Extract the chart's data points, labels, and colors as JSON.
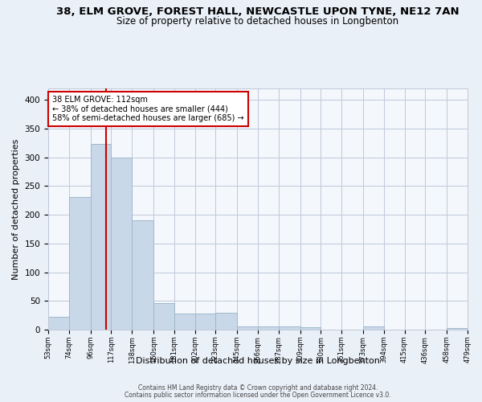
{
  "title": "38, ELM GROVE, FOREST HALL, NEWCASTLE UPON TYNE, NE12 7AN",
  "subtitle": "Size of property relative to detached houses in Longbenton",
  "xlabel": "Distribution of detached houses by size in Longbenton",
  "ylabel": "Number of detached properties",
  "bar_color": "#c8d8e8",
  "bar_edge_color": "#a0b8cc",
  "vline_x": 112,
  "vline_color": "#cc0000",
  "annotation_text": "38 ELM GROVE: 112sqm\n← 38% of detached houses are smaller (444)\n58% of semi-detached houses are larger (685) →",
  "annotation_box_color": "#cc0000",
  "bins": [
    53,
    74,
    96,
    117,
    138,
    160,
    181,
    202,
    223,
    245,
    266,
    287,
    309,
    330,
    351,
    373,
    394,
    415,
    436,
    458,
    479
  ],
  "bar_heights": [
    22,
    231,
    324,
    299,
    190,
    46,
    28,
    28,
    29,
    5,
    5,
    5,
    4,
    0,
    0,
    5,
    0,
    0,
    0,
    3
  ],
  "ylim": [
    0,
    420
  ],
  "yticks": [
    0,
    50,
    100,
    150,
    200,
    250,
    300,
    350,
    400
  ],
  "footer1": "Contains HM Land Registry data © Crown copyright and database right 2024.",
  "footer2": "Contains public sector information licensed under the Open Government Licence v3.0.",
  "bg_color": "#eaf0f8",
  "plot_bg_color": "#f4f8fc",
  "grid_color": "#c0c8d8",
  "title_fontsize": 9.5,
  "subtitle_fontsize": 8.5,
  "xlabel_fontsize": 8,
  "ylabel_fontsize": 8
}
